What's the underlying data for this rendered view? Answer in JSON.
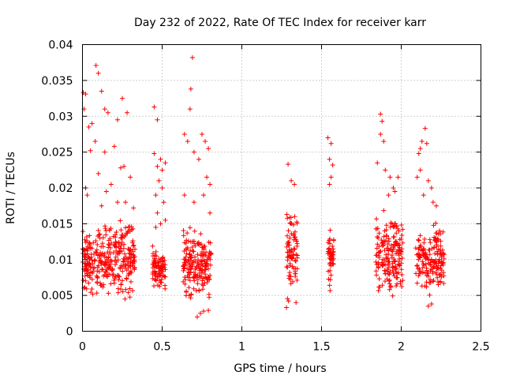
{
  "chart_data": {
    "type": "scatter",
    "title": "Day 232 of 2022, Rate Of TEC Index for receiver karr",
    "xlabel": "GPS time / hours",
    "ylabel": "ROTI / TECUs",
    "xlim": [
      0,
      2.5
    ],
    "ylim": [
      0,
      0.04
    ],
    "x_ticks": [
      0,
      0.5,
      1,
      1.5,
      2,
      2.5
    ],
    "x_tick_labels": [
      "0",
      "0.5",
      "1",
      "1.5",
      "2",
      "2.5"
    ],
    "y_ticks": [
      0,
      0.005,
      0.01,
      0.015,
      0.02,
      0.025,
      0.03,
      0.035,
      0.04
    ],
    "y_tick_labels": [
      "0",
      "0.005",
      "0.01",
      "0.015",
      "0.02",
      "0.025",
      "0.03",
      "0.035",
      "0.04"
    ],
    "grid": true,
    "marker": "+",
    "color": "#ff0000",
    "clusters": [
      {
        "x_range": [
          0.0,
          0.33
        ],
        "y_range": [
          0.0035,
          0.0165
        ],
        "count": 330,
        "outliers": [
          [
            0.005,
            0.0333
          ],
          [
            0.02,
            0.0331
          ],
          [
            0.01,
            0.031
          ],
          [
            0.04,
            0.0285
          ],
          [
            0.06,
            0.029
          ],
          [
            0.085,
            0.0371
          ],
          [
            0.1,
            0.036
          ],
          [
            0.12,
            0.0335
          ],
          [
            0.14,
            0.031
          ],
          [
            0.16,
            0.0305
          ],
          [
            0.05,
            0.0252
          ],
          [
            0.08,
            0.0265
          ],
          [
            0.1,
            0.022
          ],
          [
            0.14,
            0.025
          ],
          [
            0.2,
            0.0258
          ],
          [
            0.22,
            0.0295
          ],
          [
            0.25,
            0.0325
          ],
          [
            0.28,
            0.0305
          ],
          [
            0.26,
            0.023
          ],
          [
            0.03,
            0.019
          ],
          [
            0.15,
            0.0195
          ],
          [
            0.22,
            0.018
          ],
          [
            0.3,
            0.0215
          ],
          [
            0.18,
            0.0205
          ],
          [
            0.27,
            0.018
          ],
          [
            0.32,
            0.0172
          ],
          [
            0.02,
            0.02
          ],
          [
            0.12,
            0.0175
          ],
          [
            0.24,
            0.0228
          ]
        ]
      },
      {
        "x_range": [
          0.44,
          0.52
        ],
        "y_range": [
          0.0045,
          0.0125
        ],
        "count": 90,
        "outliers": [
          [
            0.45,
            0.0313
          ],
          [
            0.47,
            0.0295
          ],
          [
            0.45,
            0.0248
          ],
          [
            0.47,
            0.023
          ],
          [
            0.49,
            0.024
          ],
          [
            0.5,
            0.0225
          ],
          [
            0.52,
            0.0235
          ],
          [
            0.48,
            0.021
          ],
          [
            0.5,
            0.02
          ],
          [
            0.46,
            0.019
          ],
          [
            0.51,
            0.018
          ],
          [
            0.47,
            0.0165
          ],
          [
            0.49,
            0.015
          ],
          [
            0.52,
            0.0155
          ],
          [
            0.46,
            0.0145
          ]
        ]
      },
      {
        "x_range": [
          0.63,
          0.81
        ],
        "y_range": [
          0.003,
          0.0155
        ],
        "count": 190,
        "outliers": [
          [
            0.69,
            0.0382
          ],
          [
            0.68,
            0.0338
          ],
          [
            0.675,
            0.031
          ],
          [
            0.64,
            0.0275
          ],
          [
            0.66,
            0.0265
          ],
          [
            0.7,
            0.025
          ],
          [
            0.75,
            0.0275
          ],
          [
            0.77,
            0.0265
          ],
          [
            0.79,
            0.0255
          ],
          [
            0.73,
            0.024
          ],
          [
            0.78,
            0.0215
          ],
          [
            0.8,
            0.0205
          ],
          [
            0.64,
            0.019
          ],
          [
            0.7,
            0.018
          ],
          [
            0.76,
            0.019
          ],
          [
            0.8,
            0.0165
          ],
          [
            0.72,
            0.002
          ],
          [
            0.74,
            0.0025
          ],
          [
            0.76,
            0.0028
          ],
          [
            0.79,
            0.0029
          ]
        ]
      },
      {
        "x_range": [
          1.28,
          1.35
        ],
        "y_range": [
          0.0035,
          0.019
        ],
        "count": 80,
        "outliers": [
          [
            1.29,
            0.0233
          ],
          [
            1.31,
            0.021
          ],
          [
            1.33,
            0.0205
          ],
          [
            1.28,
            0.0033
          ],
          [
            1.34,
            0.004
          ]
        ]
      },
      {
        "x_range": [
          1.54,
          1.58
        ],
        "y_range": [
          0.005,
          0.015
        ],
        "count": 45,
        "outliers": [
          [
            1.54,
            0.027
          ],
          [
            1.56,
            0.0262
          ],
          [
            1.55,
            0.024
          ],
          [
            1.57,
            0.0232
          ],
          [
            1.56,
            0.0215
          ],
          [
            1.55,
            0.0205
          ]
        ]
      },
      {
        "x_range": [
          1.84,
          2.01
        ],
        "y_range": [
          0.0035,
          0.018
        ],
        "count": 180,
        "outliers": [
          [
            1.87,
            0.0303
          ],
          [
            1.88,
            0.0293
          ],
          [
            1.87,
            0.0275
          ],
          [
            1.89,
            0.0265
          ],
          [
            1.85,
            0.0235
          ],
          [
            1.9,
            0.0225
          ],
          [
            1.93,
            0.0215
          ],
          [
            1.95,
            0.02
          ],
          [
            1.98,
            0.0215
          ],
          [
            1.92,
            0.019
          ],
          [
            1.96,
            0.0195
          ]
        ]
      },
      {
        "x_range": [
          2.09,
          2.27
        ],
        "y_range": [
          0.0035,
          0.016
        ],
        "count": 170,
        "outliers": [
          [
            2.15,
            0.0283
          ],
          [
            2.13,
            0.0265
          ],
          [
            2.12,
            0.0255
          ],
          [
            2.11,
            0.0248
          ],
          [
            2.16,
            0.0262
          ],
          [
            2.1,
            0.0215
          ],
          [
            2.12,
            0.0225
          ],
          [
            2.17,
            0.021
          ],
          [
            2.19,
            0.02
          ],
          [
            2.14,
            0.019
          ],
          [
            2.2,
            0.018
          ],
          [
            2.22,
            0.0175
          ],
          [
            2.17,
            0.0035
          ],
          [
            2.19,
            0.0038
          ]
        ]
      }
    ]
  }
}
